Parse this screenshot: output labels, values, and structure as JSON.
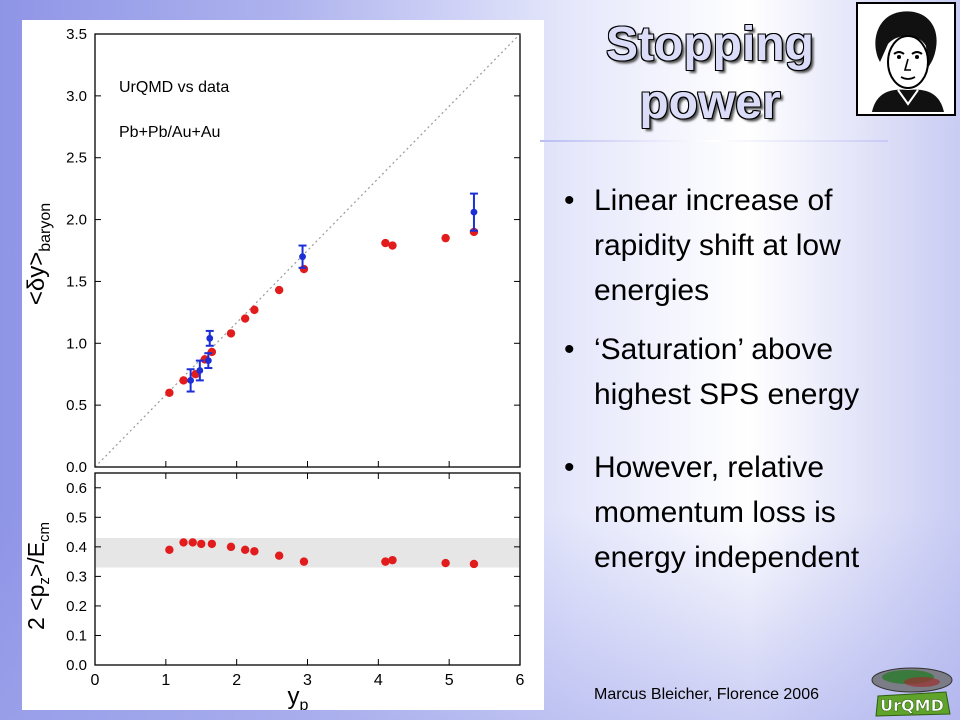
{
  "slide": {
    "title_line1": "Stopping",
    "title_line2": "power",
    "bullets": [
      "Linear increase of rapidity shift at low energies",
      "‘Saturation’ above highest SPS energy",
      "However, relative momentum loss is energy independent"
    ],
    "footer": "Marcus Bleicher, Florence 2006",
    "logo_text": "UrQMD"
  },
  "chart_data": [
    {
      "type": "scatter",
      "annotations": [
        "UrQMD vs data",
        "Pb+Pb/Au+Au"
      ],
      "ylabel": "<δy>baryon",
      "xlim": [
        0,
        6
      ],
      "ylim": [
        0,
        3.5
      ],
      "yticks": [
        "0.0",
        "0.5",
        "1.0",
        "1.5",
        "2.0",
        "2.5",
        "3.0",
        "3.5"
      ],
      "reference_line": "y = x",
      "colors": {
        "model": "#e21c1c",
        "data": "#1c2fd6",
        "reference": "#999999"
      },
      "series": [
        {
          "x": [
            1.05,
            1.25,
            1.42,
            1.55,
            1.65,
            1.92,
            2.12,
            2.25,
            2.6,
            2.95,
            4.1,
            4.2,
            4.95,
            5.35
          ],
          "y": [
            0.6,
            0.7,
            0.75,
            0.87,
            0.93,
            1.08,
            1.2,
            1.27,
            1.43,
            1.6,
            1.81,
            1.79,
            1.85,
            1.9
          ]
        },
        {
          "x": [
            1.35,
            1.48,
            1.6,
            1.62,
            2.93,
            5.35
          ],
          "y": [
            0.7,
            0.78,
            0.86,
            1.04,
            1.7,
            2.06
          ],
          "yerr": [
            0.09,
            0.08,
            0.06,
            0.06,
            0.09,
            0.15
          ]
        }
      ]
    },
    {
      "type": "scatter",
      "xlabel": "yp",
      "ylabel": "2 <pz>/Ecm",
      "xlim": [
        0,
        6
      ],
      "ylim": [
        0,
        0.65
      ],
      "xticks": [
        "0",
        "1",
        "2",
        "3",
        "4",
        "5",
        "6"
      ],
      "yticks": [
        "0.0",
        "0.1",
        "0.2",
        "0.3",
        "0.4",
        "0.5",
        "0.6"
      ],
      "band": [
        0.33,
        0.43
      ],
      "colors": {
        "model": "#e21c1c",
        "band": "#e6e6e6"
      },
      "series": [
        {
          "x": [
            1.05,
            1.25,
            1.38,
            1.5,
            1.65,
            1.92,
            2.12,
            2.25,
            2.6,
            2.95,
            4.1,
            4.2,
            4.95,
            5.35
          ],
          "y": [
            0.39,
            0.415,
            0.415,
            0.41,
            0.41,
            0.4,
            0.39,
            0.385,
            0.37,
            0.35,
            0.35,
            0.355,
            0.345,
            0.342
          ]
        }
      ]
    }
  ]
}
